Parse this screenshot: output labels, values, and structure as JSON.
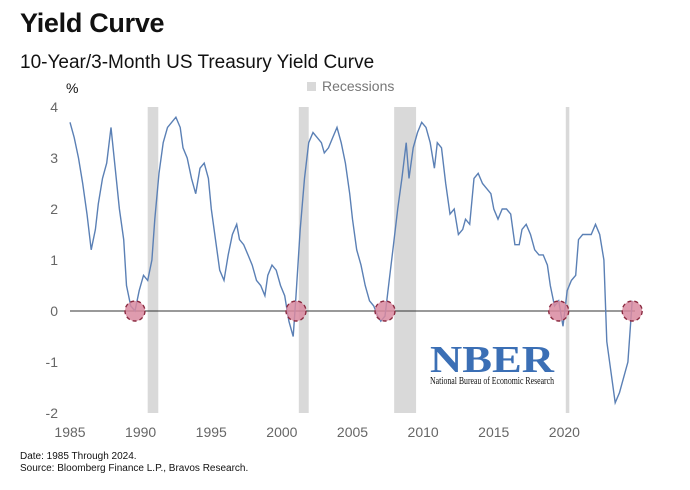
{
  "header": {
    "title": "Yield Curve",
    "subtitle": "10-Year/3-Month US Treasury Yield Curve"
  },
  "legend": {
    "recessions_label": "Recessions",
    "recession_color": "#d9d9d9"
  },
  "footnote": {
    "line1": "Date: 1985 Through 2024.",
    "line2": "Source: Bloomberg Finance L.P., Bravos Research."
  },
  "logo": {
    "text": "NBER",
    "caption": "National Bureau of Economic Research",
    "color": "#3b6fb5"
  },
  "colors": {
    "line": "#5b80b5",
    "marker_fill": "#d98aa0",
    "marker_stroke": "#8a2a40",
    "zero_line": "#333333"
  },
  "chart_data": {
    "type": "line",
    "ylabel": "%",
    "xlim": [
      1985,
      2025
    ],
    "ylim": [
      -2,
      4
    ],
    "x_ticks": [
      1985,
      1990,
      1995,
      2000,
      2005,
      2010,
      2015,
      2020
    ],
    "y_ticks": [
      4,
      3,
      2,
      1,
      0,
      -1,
      -2
    ],
    "grid": false,
    "legend_position": "top-center",
    "recessions": [
      [
        1990.5,
        1991.25
      ],
      [
        2001.2,
        2001.9
      ],
      [
        2007.95,
        2009.5
      ],
      [
        2020.1,
        2020.35
      ]
    ],
    "zero_cross_markers": [
      1989.6,
      2001.0,
      2007.3,
      2019.6,
      2024.8
    ],
    "series": [
      {
        "x": [
          1985.0,
          1985.3,
          1985.6,
          1985.9,
          1986.2,
          1986.5,
          1986.8,
          1987.0,
          1987.3,
          1987.6,
          1987.9,
          1988.2,
          1988.5,
          1988.8,
          1989.0,
          1989.3,
          1989.6,
          1989.9,
          1990.2,
          1990.5,
          1990.8,
          1991.0,
          1991.3,
          1991.6,
          1991.9,
          1992.2,
          1992.5,
          1992.8,
          1993.0,
          1993.3,
          1993.6,
          1993.9,
          1994.2,
          1994.5,
          1994.8,
          1995.0,
          1995.3,
          1995.6,
          1995.9,
          1996.2,
          1996.5,
          1996.8,
          1997.0,
          1997.3,
          1997.6,
          1997.9,
          1998.2,
          1998.5,
          1998.8,
          1999.0,
          1999.3,
          1999.6,
          1999.9,
          2000.2,
          2000.5,
          2000.8,
          2001.0,
          2001.3,
          2001.6,
          2001.9,
          2002.2,
          2002.5,
          2002.8,
          2003.0,
          2003.3,
          2003.6,
          2003.9,
          2004.2,
          2004.5,
          2004.8,
          2005.0,
          2005.3,
          2005.6,
          2005.9,
          2006.2,
          2006.5,
          2006.8,
          2007.0,
          2007.3,
          2007.6,
          2007.9,
          2008.2,
          2008.5,
          2008.8,
          2009.0,
          2009.3,
          2009.6,
          2009.9,
          2010.2,
          2010.5,
          2010.8,
          2011.0,
          2011.3,
          2011.6,
          2011.9,
          2012.2,
          2012.5,
          2012.8,
          2013.0,
          2013.3,
          2013.6,
          2013.9,
          2014.2,
          2014.5,
          2014.8,
          2015.0,
          2015.3,
          2015.6,
          2015.9,
          2016.2,
          2016.5,
          2016.8,
          2017.0,
          2017.3,
          2017.6,
          2017.9,
          2018.2,
          2018.5,
          2018.8,
          2019.0,
          2019.3,
          2019.6,
          2019.9,
          2020.2,
          2020.5,
          2020.8,
          2021.0,
          2021.3,
          2021.6,
          2021.9,
          2022.2,
          2022.5,
          2022.8,
          2023.0,
          2023.3,
          2023.6,
          2023.9,
          2024.2,
          2024.5,
          2024.8
        ],
        "values": [
          3.7,
          3.4,
          3.0,
          2.5,
          1.9,
          1.2,
          1.6,
          2.1,
          2.6,
          2.9,
          3.6,
          2.8,
          2.0,
          1.4,
          0.5,
          0.1,
          0.0,
          0.4,
          0.7,
          0.6,
          1.0,
          1.8,
          2.7,
          3.3,
          3.6,
          3.7,
          3.8,
          3.6,
          3.2,
          3.0,
          2.6,
          2.3,
          2.8,
          2.9,
          2.6,
          2.0,
          1.4,
          0.8,
          0.6,
          1.1,
          1.5,
          1.7,
          1.4,
          1.3,
          1.1,
          0.9,
          0.6,
          0.5,
          0.3,
          0.7,
          0.9,
          0.8,
          0.5,
          0.3,
          -0.2,
          -0.5,
          0.3,
          1.6,
          2.6,
          3.3,
          3.5,
          3.4,
          3.3,
          3.1,
          3.2,
          3.4,
          3.6,
          3.3,
          2.9,
          2.3,
          1.8,
          1.2,
          0.9,
          0.5,
          0.2,
          0.1,
          -0.1,
          -0.2,
          -0.1,
          0.6,
          1.3,
          2.0,
          2.6,
          3.3,
          2.6,
          3.2,
          3.5,
          3.7,
          3.6,
          3.3,
          2.8,
          3.3,
          3.2,
          2.5,
          1.9,
          2.0,
          1.5,
          1.6,
          1.8,
          1.7,
          2.6,
          2.7,
          2.5,
          2.4,
          2.3,
          2.0,
          1.8,
          2.0,
          2.0,
          1.9,
          1.3,
          1.3,
          1.6,
          1.7,
          1.5,
          1.2,
          1.1,
          1.1,
          0.9,
          0.5,
          0.1,
          0.2,
          -0.3,
          0.4,
          0.6,
          0.7,
          1.4,
          1.5,
          1.5,
          1.5,
          1.7,
          1.5,
          1.0,
          -0.6,
          -1.2,
          -1.8,
          -1.6,
          -1.3,
          -1.0,
          0.2
        ]
      }
    ]
  }
}
